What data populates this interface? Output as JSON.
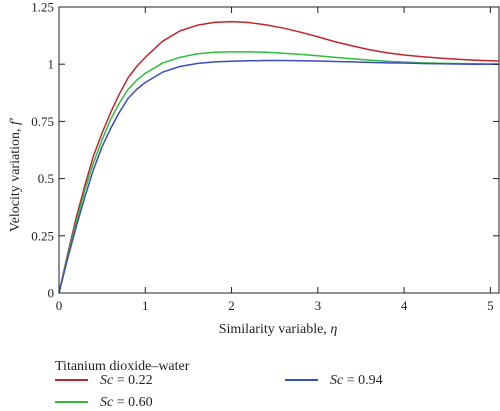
{
  "chart_data": {
    "type": "line",
    "xlabel_text": "Similarity variable, ",
    "xlabel_symbol": "η",
    "ylabel_text": "Velocity variation, ",
    "ylabel_symbol": "f′",
    "xlim": [
      0,
      5.1
    ],
    "ylim": [
      0,
      1.25
    ],
    "x_ticks": [
      0,
      1,
      2,
      3,
      4,
      5
    ],
    "x_tick_labels": [
      "0",
      "1",
      "2",
      "3",
      "4",
      "5"
    ],
    "y_ticks": [
      0,
      0.25,
      0.5,
      0.75,
      1,
      1.25
    ],
    "y_tick_labels": [
      "0",
      "0.25",
      "0.5",
      "0.75",
      "1",
      "1.25"
    ],
    "grid": false,
    "legend_title": "Titanium dioxide–water",
    "legend_placement": "bottom",
    "series": [
      {
        "name_var": "Sc",
        "name_rest": " = 0.22",
        "color": "#c0262d",
        "x": [
          0,
          0.1,
          0.2,
          0.3,
          0.4,
          0.5,
          0.6,
          0.7,
          0.8,
          0.9,
          1.0,
          1.2,
          1.4,
          1.6,
          1.8,
          2.0,
          2.2,
          2.4,
          2.6,
          2.8,
          3.0,
          3.2,
          3.4,
          3.6,
          3.8,
          4.0,
          4.2,
          4.4,
          4.6,
          4.8,
          5.0,
          5.1
        ],
        "y": [
          0,
          0.17,
          0.33,
          0.47,
          0.6,
          0.7,
          0.79,
          0.87,
          0.94,
          0.99,
          1.03,
          1.1,
          1.145,
          1.17,
          1.183,
          1.186,
          1.182,
          1.172,
          1.158,
          1.14,
          1.12,
          1.098,
          1.08,
          1.063,
          1.05,
          1.04,
          1.033,
          1.027,
          1.022,
          1.018,
          1.015,
          1.014
        ]
      },
      {
        "name_var": "Sc",
        "name_rest": " = 0.60",
        "color": "#2dbe3a",
        "x": [
          0,
          0.1,
          0.2,
          0.3,
          0.4,
          0.5,
          0.6,
          0.7,
          0.8,
          0.9,
          1.0,
          1.2,
          1.4,
          1.6,
          1.8,
          2.0,
          2.2,
          2.4,
          2.6,
          2.8,
          3.0,
          3.2,
          3.4,
          3.6,
          3.8,
          4.0,
          4.2,
          4.4,
          4.6,
          4.8,
          5.0,
          5.1
        ],
        "y": [
          0,
          0.16,
          0.31,
          0.45,
          0.57,
          0.67,
          0.76,
          0.83,
          0.89,
          0.93,
          0.96,
          1.005,
          1.03,
          1.045,
          1.052,
          1.054,
          1.054,
          1.052,
          1.048,
          1.043,
          1.037,
          1.03,
          1.024,
          1.018,
          1.013,
          1.009,
          1.006,
          1.004,
          1.003,
          1.002,
          1.001,
          1.001
        ]
      },
      {
        "name_var": "Sc",
        "name_rest": " = 0.94",
        "color": "#3b4cc0",
        "x": [
          0,
          0.1,
          0.2,
          0.3,
          0.4,
          0.5,
          0.6,
          0.7,
          0.8,
          0.9,
          1.0,
          1.2,
          1.4,
          1.6,
          1.8,
          2.0,
          2.2,
          2.4,
          2.6,
          2.8,
          3.0,
          3.2,
          3.4,
          3.6,
          3.8,
          4.0,
          4.2,
          4.4,
          4.6,
          4.8,
          5.0,
          5.1
        ],
        "y": [
          0,
          0.15,
          0.29,
          0.42,
          0.54,
          0.64,
          0.72,
          0.79,
          0.85,
          0.89,
          0.92,
          0.965,
          0.99,
          1.003,
          1.01,
          1.013,
          1.015,
          1.016,
          1.016,
          1.015,
          1.014,
          1.012,
          1.01,
          1.008,
          1.006,
          1.005,
          1.003,
          1.002,
          1.001,
          1.0,
          1.0,
          1.0
        ]
      }
    ]
  }
}
